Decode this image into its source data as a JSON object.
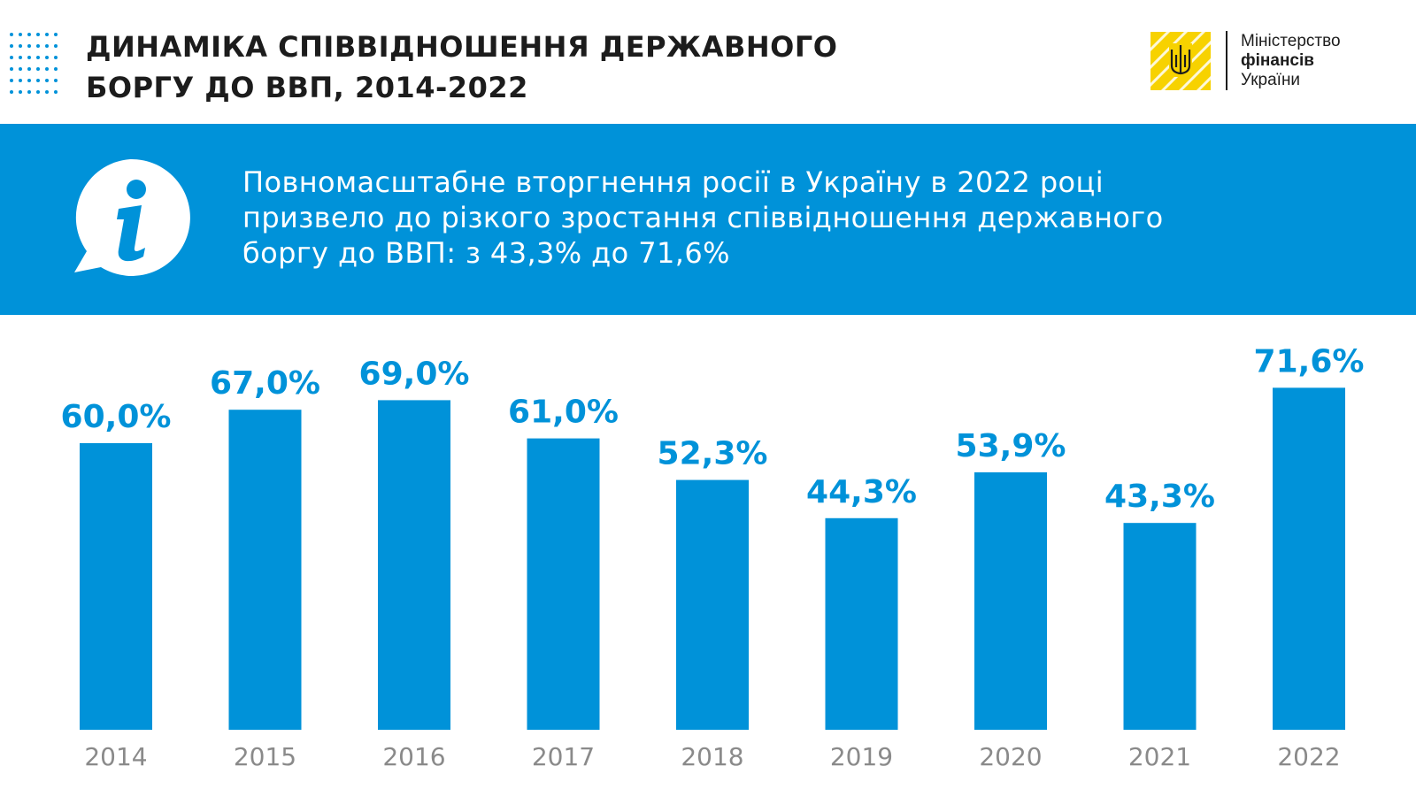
{
  "header": {
    "title_line1": "ДИНАМІКА  СПІВВІДНОШЕННЯ ДЕРЖАВНОГО",
    "title_line2": "БОРГУ ДО ВВП, 2014-2022"
  },
  "logo": {
    "line1": "Міністерство",
    "line2": "фінансів",
    "line3": "України"
  },
  "banner": {
    "line1": "Повномасштабне вторгнення росії в Україну в 2022 році",
    "line2": "призвело до різкого зростання співвідношення державного",
    "line3": "боргу до ВВП: з 43,3% до 71,6%"
  },
  "colors": {
    "accent": "#0092d9",
    "logo_yellow": "#f7d200",
    "title_text": "#1c1c1c",
    "axis_text": "#8a8a8a"
  },
  "chart_data": {
    "type": "bar",
    "categories": [
      "2014",
      "2015",
      "2016",
      "2017",
      "2018",
      "2019",
      "2020",
      "2021",
      "2022"
    ],
    "values": [
      60.0,
      67.0,
      69.0,
      61.0,
      52.3,
      44.3,
      53.9,
      43.3,
      71.6
    ],
    "value_labels": [
      "60,0%",
      "67,0%",
      "69,0%",
      "61,0%",
      "52,3%",
      "44,3%",
      "53,9%",
      "43,3%",
      "71,6%"
    ],
    "unit": "%",
    "grid": false,
    "legend": "none"
  }
}
